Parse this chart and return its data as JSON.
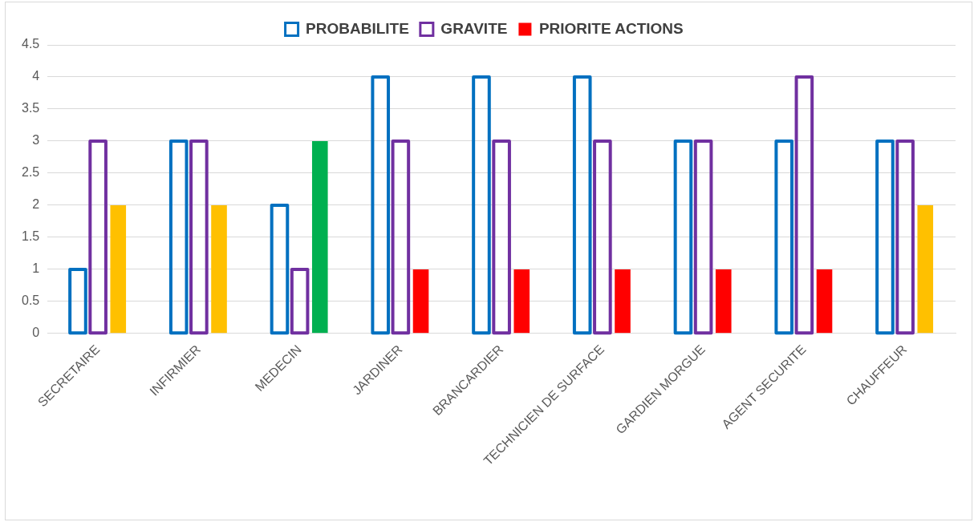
{
  "chart_data": {
    "type": "bar",
    "categories": [
      "SECRETAIRE",
      "INFIRMIER",
      "MEDECIN",
      "JARDINER",
      "BRANCARDIER",
      "TECHNICIEN DE SURFACE",
      "GARDIEN MORGUE",
      "AGENT SECURITE",
      "CHAUFFEUR"
    ],
    "series": [
      {
        "name": "PROBABILITE",
        "color": "#0070c0",
        "values": [
          1,
          3,
          2,
          4,
          4,
          4,
          3,
          3,
          3
        ]
      },
      {
        "name": "GRAVITE",
        "color": "#7030a0",
        "values": [
          3,
          3,
          1,
          3,
          3,
          3,
          3,
          4,
          3
        ]
      },
      {
        "name": "PRIORITE ACTIONS",
        "color": "#ff0000",
        "colors": [
          "#ffc000",
          "#ffc000",
          "#00b050",
          "#ff0000",
          "#ff0000",
          "#ff0000",
          "#ff0000",
          "#ff0000",
          "#ffc000"
        ],
        "values": [
          2,
          2,
          3,
          1,
          1,
          1,
          1,
          1,
          2
        ]
      }
    ],
    "ylim": [
      0,
      4.5
    ],
    "yticks": [
      0,
      0.5,
      1,
      1.5,
      2,
      2.5,
      3,
      3.5,
      4,
      4.5
    ],
    "grid": "y",
    "legend": "top"
  }
}
